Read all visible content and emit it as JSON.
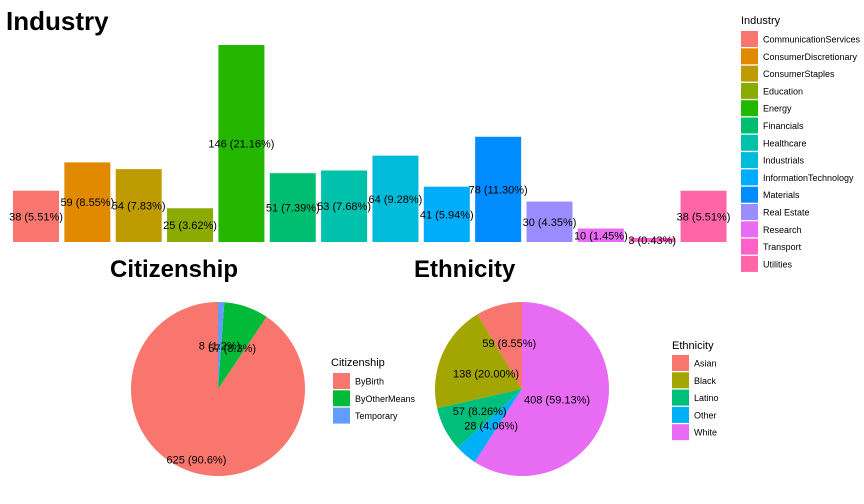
{
  "chart_data": [
    {
      "type": "bar",
      "title": "Industry",
      "legend_title": "Industry",
      "legend_position": "right",
      "grid": false,
      "ylim": [
        0,
        146
      ],
      "categories": [
        "CommunicationServices",
        "ConsumerDiscretionary",
        "ConsumerStaples",
        "Education",
        "Energy",
        "Financials",
        "Healthcare",
        "Industrials",
        "InformationTechnology",
        "Materials",
        "Real Estate",
        "Research",
        "Transport",
        "Utilities"
      ],
      "values": [
        38,
        59,
        54,
        25,
        146,
        51,
        53,
        64,
        41,
        78,
        30,
        10,
        3,
        38
      ],
      "labels": [
        "38 (5.51%)",
        "59 (8.55%)",
        "54 (7.83%)",
        "25 (3.62%)",
        "146 (21.16%)",
        "51 (7.39%)",
        "53 (7.68%)",
        "64 (9.28%)",
        "41 (5.94%)",
        "78 (11.30%)",
        "30 (4.35%)",
        "10 (1.45%)",
        "3 (0.43%)",
        "38 (5.51%)"
      ],
      "colors": [
        "#F8766D",
        "#E18A00",
        "#BE9C00",
        "#8CAB00",
        "#24B700",
        "#00BE70",
        "#00C1AB",
        "#00BBDA",
        "#00ACFC",
        "#008CFF",
        "#9B8CFF",
        "#E76BF3",
        "#FF61C9",
        "#FF66A8"
      ]
    },
    {
      "type": "pie",
      "title": "Citizenship",
      "legend_title": "Citizenship",
      "legend_position": "right",
      "categories": [
        "ByBirth",
        "ByOtherMeans",
        "Temporary"
      ],
      "values": [
        625,
        57,
        8
      ],
      "labels": [
        "625 (90.6%)",
        "57 (8.3%)",
        "8 (1.2%)"
      ],
      "colors": [
        "#F8766D",
        "#00BA38",
        "#619CFF"
      ]
    },
    {
      "type": "pie",
      "title": "Ethnicity",
      "legend_title": "Ethnicity",
      "legend_position": "right",
      "categories": [
        "Asian",
        "Black",
        "Latino",
        "Other",
        "White"
      ],
      "values": [
        59,
        138,
        57,
        28,
        408
      ],
      "labels": [
        "59 (8.55%)",
        "138 (20.00%)",
        "57 (8.26%)",
        "28 (4.06%)",
        "408 (59.13%)"
      ],
      "colors": [
        "#F8766D",
        "#A3A500",
        "#00BF7D",
        "#00B0F6",
        "#E76BF3"
      ]
    }
  ]
}
